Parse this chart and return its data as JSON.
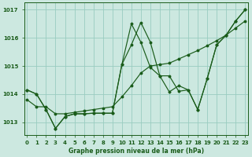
{
  "title": "Graphe pression niveau de la mer (hPa)",
  "background_color": "#cce8e0",
  "grid_color": "#99ccc0",
  "line_color": "#1a5c1a",
  "y_ticks": [
    1013,
    1014,
    1015,
    1016,
    1017
  ],
  "x_ticks": [
    0,
    1,
    2,
    3,
    4,
    5,
    6,
    7,
    8,
    9,
    10,
    11,
    12,
    13,
    14,
    15,
    16,
    17,
    18,
    19,
    20,
    21,
    22,
    23
  ],
  "ylim": [
    1012.55,
    1017.25
  ],
  "xlim": [
    -0.3,
    23.3
  ],
  "line1_y": [
    1014.15,
    1014.0,
    1013.45,
    1012.78,
    1013.2,
    1013.3,
    1013.3,
    1013.32,
    1013.32,
    1013.32,
    1015.05,
    1015.75,
    1016.55,
    1015.85,
    1014.65,
    1014.65,
    1014.1,
    1014.15,
    1013.45,
    1014.55,
    1015.75,
    1016.1,
    1016.6,
    1017.0
  ],
  "line2_y": [
    1013.8,
    1013.55,
    1013.55,
    1013.3,
    1013.3,
    1013.35,
    1013.4,
    1013.45,
    1013.5,
    1013.55,
    1013.9,
    1014.3,
    1014.75,
    1015.0,
    1015.05,
    1015.1,
    1015.25,
    1015.4,
    1015.55,
    1015.72,
    1015.9,
    1016.1,
    1016.35,
    1016.6
  ],
  "line3_y": [
    1014.15,
    1014.0,
    1013.45,
    1012.78,
    1013.2,
    1013.3,
    1013.3,
    1013.32,
    1013.32,
    1013.32,
    1015.05,
    1016.5,
    1015.85,
    1014.95,
    1014.65,
    1014.08,
    1014.3,
    1014.15,
    1013.45,
    1014.55,
    1015.75,
    1016.1,
    1016.6,
    1017.0
  ]
}
